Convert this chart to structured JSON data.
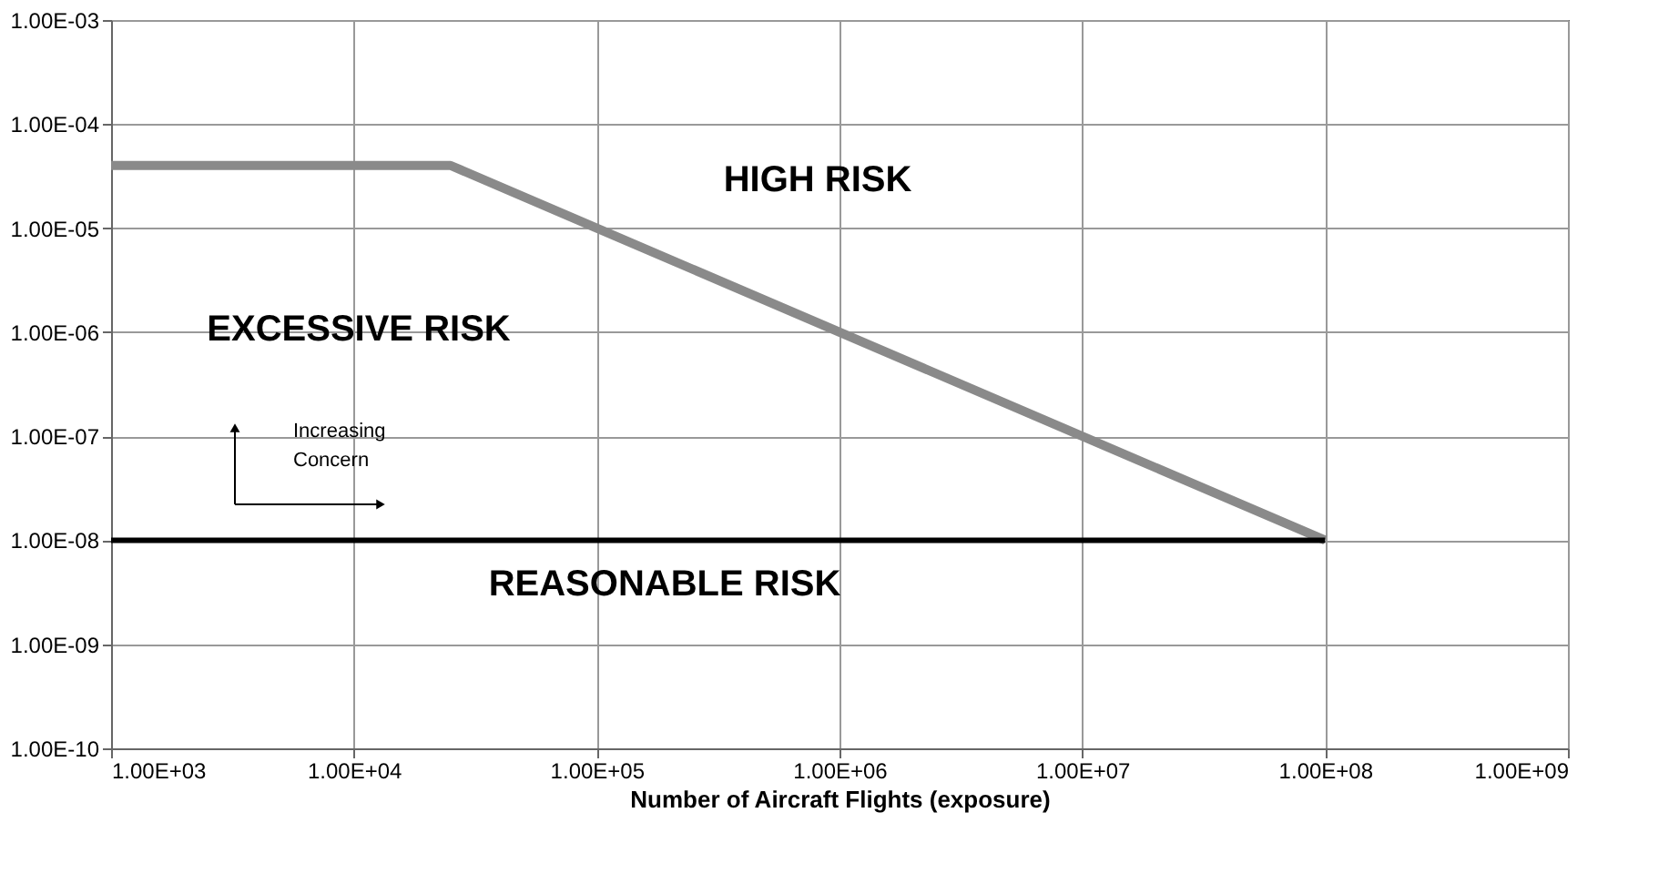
{
  "chart_data": {
    "type": "line",
    "xlabel": "Number of Aircraft Flights (exposure)",
    "log": "xy",
    "grid": true,
    "marker": "none",
    "line_style": "solid",
    "xlim": [
      1000,
      1000000000
    ],
    "ylim": [
      1e-10,
      0.001
    ],
    "xticks": [
      {
        "value": 1000,
        "label": "1.00E+03"
      },
      {
        "value": 10000,
        "label": "1.00E+04"
      },
      {
        "value": 100000,
        "label": "1.00E+05"
      },
      {
        "value": 1000000,
        "label": "1.00E+06"
      },
      {
        "value": 10000000,
        "label": "1.00E+07"
      },
      {
        "value": 100000000,
        "label": "1.00E+08"
      },
      {
        "value": 1000000000,
        "label": "1.00E+09"
      }
    ],
    "yticks": [
      {
        "value": 1e-10,
        "label": "1.00E-10"
      },
      {
        "value": 1e-09,
        "label": "1.00E-09"
      },
      {
        "value": 1e-08,
        "label": "1.00E-08"
      },
      {
        "value": 1e-07,
        "label": "1.00E-07"
      },
      {
        "value": 1e-06,
        "label": "1.00E-06"
      },
      {
        "value": 1e-05,
        "label": "1.00E-05"
      },
      {
        "value": 0.0001,
        "label": "1.00E-04"
      },
      {
        "value": 0.001,
        "label": "1.00E-03"
      }
    ],
    "series": [
      {
        "color": "#8a8a8a",
        "x": [
          1000,
          25000,
          100000000
        ],
        "values": [
          4e-05,
          4e-05,
          1e-08
        ]
      },
      {
        "color": "#000000",
        "x": [
          1000,
          100000000
        ],
        "values": [
          1e-08,
          1e-08
        ]
      }
    ],
    "annotations": [
      "HIGH RISK",
      "EXCESSIVE RISK",
      "REASONABLE RISK",
      "Increasing\nConcern"
    ]
  }
}
